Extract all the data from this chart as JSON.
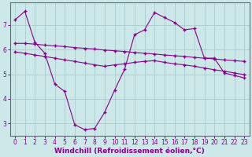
{
  "bg_color": "#cce8e8",
  "line_color": "#880088",
  "grid_color": "#aacccc",
  "xlabel": "Windchill (Refroidissement éolien,°C)",
  "xlabel_fontsize": 6.5,
  "tick_fontsize": 5.5,
  "ylim": [
    2.5,
    7.9
  ],
  "xlim": [
    -0.5,
    23.5
  ],
  "yticks": [
    3,
    4,
    5,
    6,
    7
  ],
  "xticks": [
    0,
    1,
    2,
    3,
    4,
    5,
    6,
    7,
    8,
    9,
    10,
    11,
    12,
    13,
    14,
    15,
    16,
    17,
    18,
    19,
    20,
    21,
    22,
    23
  ],
  "line1_x": [
    0,
    1,
    2,
    3,
    4,
    5,
    6,
    7,
    8,
    9,
    10,
    11,
    12,
    13,
    14,
    15,
    16,
    17,
    18,
    19,
    20,
    21,
    22,
    23
  ],
  "line1_y": [
    7.2,
    7.55,
    6.3,
    5.85,
    4.6,
    4.3,
    2.95,
    2.75,
    2.8,
    3.45,
    4.35,
    5.2,
    6.6,
    6.8,
    7.5,
    7.3,
    7.1,
    6.8,
    6.85,
    5.65,
    5.65,
    5.05,
    4.95,
    4.85
  ],
  "line2_x": [
    0,
    1,
    2,
    3,
    4,
    5,
    6,
    7,
    8,
    9,
    10,
    11,
    12,
    13,
    14,
    15,
    16,
    17,
    18,
    19,
    20,
    21,
    22,
    23
  ],
  "line2_y": [
    6.25,
    6.25,
    6.22,
    6.18,
    6.15,
    6.12,
    6.08,
    6.05,
    6.02,
    5.98,
    5.95,
    5.92,
    5.88,
    5.85,
    5.82,
    5.78,
    5.75,
    5.72,
    5.68,
    5.65,
    5.62,
    5.58,
    5.55,
    5.52
  ],
  "line3_x": [
    0,
    1,
    2,
    3,
    4,
    5,
    6,
    7,
    8,
    9,
    10,
    11,
    12,
    13,
    14,
    15,
    16,
    17,
    18,
    19,
    20,
    21,
    22,
    23
  ],
  "line3_y": [
    5.9,
    5.85,
    5.78,
    5.72,
    5.65,
    5.58,
    5.52,
    5.45,
    5.38,
    5.32,
    5.38,
    5.42,
    5.48,
    5.52,
    5.55,
    5.48,
    5.42,
    5.38,
    5.32,
    5.25,
    5.18,
    5.12,
    5.05,
    4.98
  ]
}
